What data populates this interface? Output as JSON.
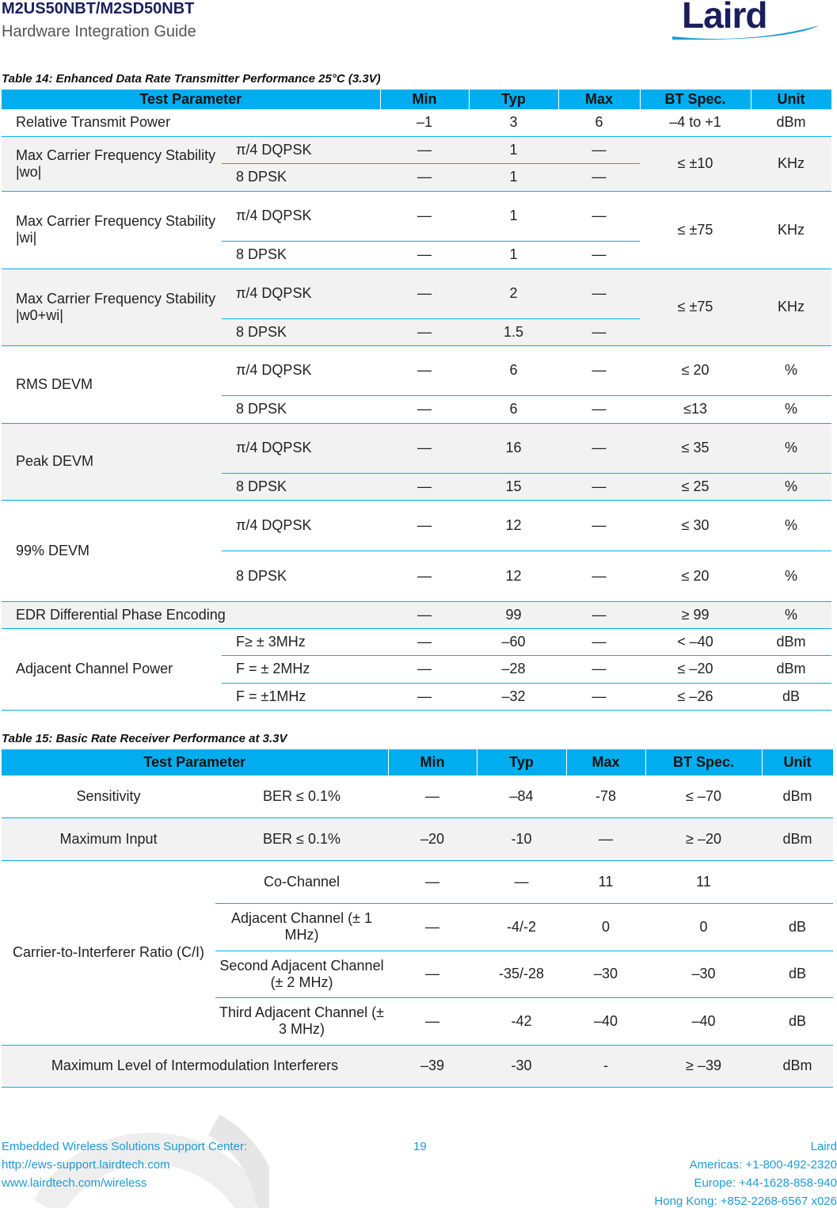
{
  "header": {
    "title": "M2US50NBT/M2SD50NBT",
    "subtitle": "Hardware Integration Guide",
    "logo_text": "Laird"
  },
  "table14": {
    "caption": "Table 14: Enhanced Data Rate Transmitter Performance 25°C (3.3V)",
    "headers": [
      "Test Parameter",
      "Min",
      "Typ",
      "Max",
      "BT Spec.",
      "Unit"
    ],
    "groups": [
      {
        "param": "Relative Transmit Power",
        "merged": false,
        "rows": [
          {
            "sub": null,
            "min": "–1",
            "typ": "3",
            "max": "6",
            "bt": "–4 to +1",
            "unit": "dBm"
          }
        ]
      },
      {
        "param": "Max Carrier Frequency Stability |wo|",
        "merged": true,
        "bt": "≤ ±10",
        "unit": "KHz",
        "rows": [
          {
            "sub": "π/4 DQPSK",
            "min": "—",
            "typ": "1",
            "max": "—"
          },
          {
            "sub": "8 DPSK",
            "min": "—",
            "typ": "1",
            "max": "—"
          }
        ]
      },
      {
        "param": "Max Carrier Frequency Stability |wi|",
        "merged": true,
        "bt": "≤ ±75",
        "unit": "KHz",
        "rows": [
          {
            "sub": "π/4 DQPSK",
            "min": "—",
            "typ": "1",
            "max": "—"
          },
          {
            "sub": "8 DPSK",
            "min": "—",
            "typ": "1",
            "max": "—"
          }
        ]
      },
      {
        "param": "Max Carrier Frequency Stability |w0+wi|",
        "merged": true,
        "bt": "≤ ±75",
        "unit": "KHz",
        "rows": [
          {
            "sub": "π/4 DQPSK",
            "min": "—",
            "typ": "2",
            "max": "—"
          },
          {
            "sub": "8 DPSK",
            "min": "—",
            "typ": "1.5",
            "max": "—"
          }
        ]
      },
      {
        "param": "RMS DEVM",
        "merged": false,
        "rows": [
          {
            "sub": "π/4 DQPSK",
            "min": "—",
            "typ": "6",
            "max": "—",
            "bt": "≤ 20",
            "unit": "%"
          },
          {
            "sub": "8 DPSK",
            "min": "—",
            "typ": "6",
            "max": "—",
            "bt": "≤13",
            "unit": "%"
          }
        ]
      },
      {
        "param": "Peak DEVM",
        "merged": false,
        "rows": [
          {
            "sub": "π/4 DQPSK",
            "min": "—",
            "typ": "16",
            "max": "—",
            "bt": "≤ 35",
            "unit": "%"
          },
          {
            "sub": "8 DPSK",
            "min": "—",
            "typ": "15",
            "max": "—",
            "bt": "≤ 25",
            "unit": "%"
          }
        ]
      },
      {
        "param": "99% DEVM",
        "merged": false,
        "rows": [
          {
            "sub": "π/4 DQPSK",
            "min": "—",
            "typ": "12",
            "max": "—",
            "bt": "≤ 30",
            "unit": "%"
          },
          {
            "sub": "8 DPSK",
            "min": "—",
            "typ": "12",
            "max": "—",
            "bt": "≤ 20",
            "unit": "%"
          }
        ]
      },
      {
        "param": "EDR Differential Phase Encoding",
        "merged": false,
        "rows": [
          {
            "sub": null,
            "min": "—",
            "typ": "99",
            "max": "—",
            "bt": "≥ 99",
            "unit": "%"
          }
        ]
      },
      {
        "param": "Adjacent Channel Power",
        "merged": false,
        "rows": [
          {
            "sub": "F≥ ± 3MHz",
            "min": "—",
            "typ": "–60",
            "max": "—",
            "bt": "< –40",
            "unit": "dBm"
          },
          {
            "sub": "F = ± 2MHz",
            "min": "—",
            "typ": "–28",
            "max": "—",
            "bt": "≤ –20",
            "unit": "dBm"
          },
          {
            "sub": "F = ±1MHz",
            "min": "—",
            "typ": "–32",
            "max": "—",
            "bt": "≤ –26",
            "unit": "dB"
          }
        ]
      }
    ]
  },
  "table15": {
    "caption": "Table 15: Basic Rate Receiver Performance at 3.3V",
    "headers": [
      "Test Parameter",
      "Min",
      "Typ",
      "Max",
      "BT Spec.",
      "Unit"
    ],
    "groups": [
      {
        "param": "Sensitivity",
        "merged": false,
        "rows": [
          {
            "sub": "BER ≤ 0.1%",
            "min": "—",
            "typ": "–84",
            "max": "-78",
            "bt": "≤ –70",
            "unit": "dBm"
          }
        ]
      },
      {
        "param": "Maximum Input",
        "merged": false,
        "rows": [
          {
            "sub": "BER ≤ 0.1%",
            "min": "–20",
            "typ": "-10",
            "max": "—",
            "bt": "≥ –20",
            "unit": "dBm"
          }
        ]
      },
      {
        "param": "Carrier-to-Interferer Ratio (C/I)",
        "merged": false,
        "rows": [
          {
            "sub": "Co-Channel",
            "min": "—",
            "typ": "—",
            "max": "11",
            "bt": "11",
            "unit": ""
          },
          {
            "sub": "Adjacent Channel (± 1 MHz)",
            "min": "—",
            "typ": "-4/-2",
            "max": "0",
            "bt": "0",
            "unit": "dB"
          },
          {
            "sub": "Second Adjacent Channel (± 2 MHz)",
            "min": "—",
            "typ": "-35/-28",
            "max": "–30",
            "bt": "–30",
            "unit": "dB"
          },
          {
            "sub": "Third Adjacent Channel (± 3 MHz)",
            "min": "—",
            "typ": "-42",
            "max": "–40",
            "bt": "–40",
            "unit": "dB"
          }
        ]
      },
      {
        "param": "Maximum Level of Intermodulation Interferers",
        "merged": false,
        "rows": [
          {
            "sub": null,
            "min": "–39",
            "typ": "-30",
            "max": "-",
            "bt": "≥ –39",
            "unit": "dBm"
          }
        ]
      }
    ]
  },
  "footer": {
    "left": [
      "Embedded Wireless Solutions Support Center:",
      "http://ews-support.lairdtech.com",
      "www.lairdtech.com/wireless"
    ],
    "page": "19",
    "right": [
      "Laird",
      "Americas: +1-800-492-2320",
      "Europe: +44-1628-858-940",
      "Hong Kong: +852-2268-6567 x026"
    ]
  }
}
